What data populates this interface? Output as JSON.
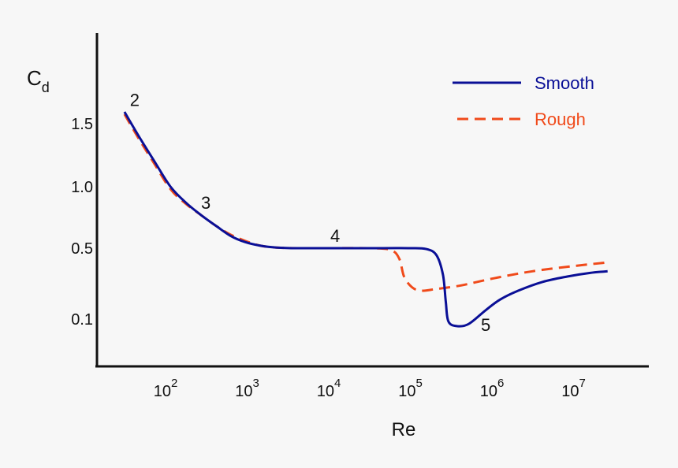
{
  "chart_data": {
    "type": "line",
    "ylabel_main": "C",
    "ylabel_sub": "d",
    "xlabel": "Re",
    "yticks": [
      {
        "value": 1.5,
        "label": "1.5"
      },
      {
        "value": 1.0,
        "label": "1.0"
      },
      {
        "value": 0.5,
        "label": "0.5"
      },
      {
        "value": 0.1,
        "label": "0.1"
      }
    ],
    "xticks": [
      {
        "value": 100,
        "base": "10",
        "exp": "2"
      },
      {
        "value": 1000,
        "base": "10",
        "exp": "3"
      },
      {
        "value": 10000,
        "base": "10",
        "exp": "4"
      },
      {
        "value": 100000,
        "base": "10",
        "exp": "5"
      },
      {
        "value": 1000000,
        "base": "10",
        "exp": "6"
      },
      {
        "value": 10000000,
        "base": "10",
        "exp": "7"
      }
    ],
    "x_scale": "log",
    "xlim": [
      10,
      30000000
    ],
    "grid": false,
    "legend_position": "top-right",
    "series": [
      {
        "name": "Smooth",
        "color": "#0a0f96",
        "style": "solid",
        "points": [
          [
            30,
            1.6
          ],
          [
            45,
            1.4
          ],
          [
            70,
            1.2
          ],
          [
            110,
            1.0
          ],
          [
            170,
            0.87
          ],
          [
            260,
            0.77
          ],
          [
            400,
            0.68
          ],
          [
            600,
            0.6
          ],
          [
            900,
            0.55
          ],
          [
            1400,
            0.52
          ],
          [
            2200,
            0.505
          ],
          [
            4000,
            0.5
          ],
          [
            10000,
            0.5
          ],
          [
            30000,
            0.5
          ],
          [
            90000,
            0.5
          ],
          [
            150000,
            0.495
          ],
          [
            200000,
            0.46
          ],
          [
            240000,
            0.35
          ],
          [
            260000,
            0.2
          ],
          [
            280000,
            0.09
          ],
          [
            360000,
            0.07
          ],
          [
            500000,
            0.08
          ],
          [
            800000,
            0.15
          ],
          [
            1200000,
            0.21
          ],
          [
            2000000,
            0.26
          ],
          [
            4000000,
            0.31
          ],
          [
            8000000,
            0.34
          ],
          [
            15000000,
            0.36
          ],
          [
            25000000,
            0.37
          ]
        ]
      },
      {
        "name": "Rough",
        "color": "#f04a1a",
        "style": "dashed",
        "points": [
          [
            30,
            1.58
          ],
          [
            45,
            1.38
          ],
          [
            70,
            1.18
          ],
          [
            110,
            0.98
          ],
          [
            170,
            0.86
          ],
          [
            260,
            0.77
          ],
          [
            400,
            0.68
          ],
          [
            600,
            0.61
          ],
          [
            900,
            0.56
          ],
          [
            1400,
            0.52
          ],
          [
            2200,
            0.505
          ],
          [
            4000,
            0.5
          ],
          [
            10000,
            0.5
          ],
          [
            30000,
            0.5
          ],
          [
            55000,
            0.49
          ],
          [
            70000,
            0.44
          ],
          [
            80000,
            0.34
          ],
          [
            100000,
            0.28
          ],
          [
            130000,
            0.26
          ],
          [
            200000,
            0.27
          ],
          [
            400000,
            0.29
          ],
          [
            1000000,
            0.33
          ],
          [
            3000000,
            0.37
          ],
          [
            10000000,
            0.4
          ],
          [
            25000000,
            0.42
          ]
        ]
      }
    ],
    "annotations": [
      {
        "label": "2",
        "x": 35,
        "y": 1.65
      },
      {
        "label": "3",
        "x": 260,
        "y": 0.82
      },
      {
        "label": "4",
        "x": 10000,
        "y": 0.55
      },
      {
        "label": "5",
        "x": 700000,
        "y": 0.05
      }
    ]
  }
}
